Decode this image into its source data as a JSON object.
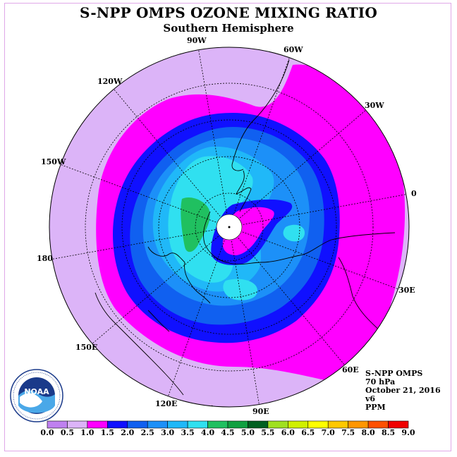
{
  "title": "S-NPP OMPS OZONE MIXING RATIO",
  "subtitle": "Southern Hemisphere",
  "info": {
    "instrument": "S-NPP OMPS",
    "level": "70 hPa",
    "date": "October 21, 2016",
    "version": "v6",
    "units": "PPM"
  },
  "longitude_labels": [
    "90W",
    "60W",
    "30W",
    "0",
    "30E",
    "60E",
    "90E",
    "120E",
    "150E",
    "180",
    "150W",
    "120W"
  ],
  "colorbar": {
    "ticks": [
      "0.0",
      "0.5",
      "1.0",
      "1.5",
      "2.0",
      "2.5",
      "3.0",
      "3.5",
      "4.0",
      "4.5",
      "5.0",
      "5.5",
      "6.0",
      "6.5",
      "7.0",
      "7.5",
      "8.0",
      "8.5",
      "9.0"
    ],
    "colors": [
      "#bf80f0",
      "#dcb4f8",
      "#ff00ff",
      "#1010ff",
      "#1060f0",
      "#1c90f8",
      "#20b8f8",
      "#30e0f0",
      "#20c060",
      "#10a040",
      "#006020",
      "#a0e020",
      "#d0f000",
      "#ffff00",
      "#ffc800",
      "#ff9600",
      "#ff5000",
      "#f00000",
      "#906040"
    ]
  },
  "logo": {
    "name": "NOAA",
    "icon": "noaa-logo"
  }
}
